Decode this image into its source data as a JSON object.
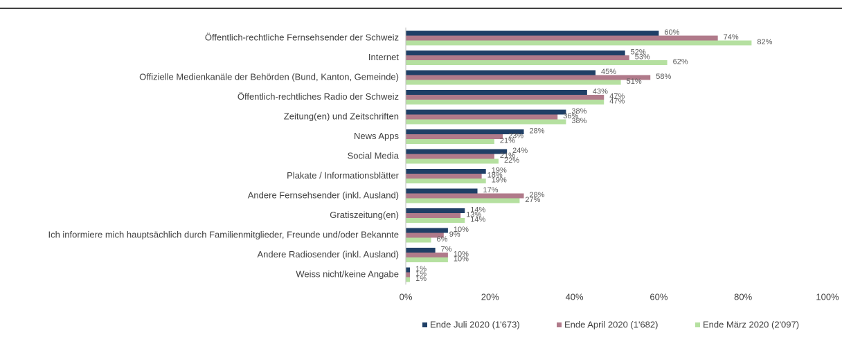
{
  "chart_data": {
    "type": "bar",
    "orientation": "horizontal",
    "categories": [
      "Öffentlich-rechtliche Fernsehsender der Schweiz",
      "Internet",
      "Offizielle Medienkanäle der Behörden (Bund, Kanton, Gemeinde)",
      "Öffentlich-rechtliches Radio der Schweiz",
      "Zeitung(en) und Zeitschriften",
      "News Apps",
      "Social Media",
      "Plakate / Informationsblätter",
      "Andere Fernsehsender (inkl. Ausland)",
      "Gratiszeitung(en)",
      "Ich informiere mich hauptsächlich durch Familienmitglieder, Freunde und/oder Bekannte",
      "Andere Radiosender (inkl. Ausland)",
      "Weiss nicht/keine Angabe"
    ],
    "series": [
      {
        "name": "Ende Juli 2020 (1'673)",
        "color": "#1f3f66",
        "values": [
          60,
          52,
          45,
          43,
          38,
          28,
          24,
          19,
          17,
          14,
          10,
          7,
          1
        ],
        "value_labels": [
          "60%",
          "52%",
          "45%",
          "43%",
          "38%",
          "28%",
          "24%",
          "19%",
          "17%",
          "14%",
          "10%",
          "7%",
          "1%"
        ]
      },
      {
        "name": "Ende April 2020 (1'682)",
        "color": "#b07a8a",
        "values": [
          74,
          53,
          58,
          47,
          36,
          23,
          21,
          18,
          28,
          13,
          9,
          10,
          1
        ],
        "value_labels": [
          "74%",
          "53%",
          "58%",
          "47%",
          "36%",
          "23%",
          "21%",
          "18%",
          "28%",
          "13%",
          "9%",
          "10%",
          "1%"
        ]
      },
      {
        "name": "Ende März 2020 (2'097)",
        "color": "#b5e0a0",
        "values": [
          82,
          62,
          51,
          47,
          38,
          21,
          22,
          19,
          27,
          14,
          6,
          10,
          1
        ],
        "value_labels": [
          "82%",
          "62%",
          "51%",
          "47%",
          "38%",
          "21%",
          "22%",
          "19%",
          "27%",
          "14%",
          "6%",
          "10%",
          "1%"
        ]
      }
    ],
    "xlim": [
      0,
      100
    ],
    "xticks": [
      {
        "value": 0,
        "label": "0%"
      },
      {
        "value": 20,
        "label": "20%"
      },
      {
        "value": 40,
        "label": "40%"
      },
      {
        "value": 60,
        "label": "60%"
      },
      {
        "value": 80,
        "label": "80%"
      },
      {
        "value": 100,
        "label": "100%"
      }
    ],
    "legend": "bottom"
  }
}
